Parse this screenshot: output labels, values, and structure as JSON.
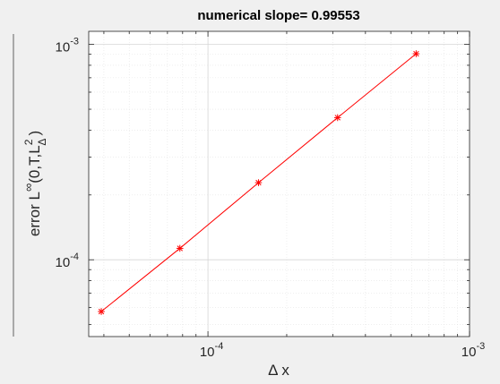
{
  "chart_data": {
    "type": "line",
    "title": "numerical slope= 0.99553",
    "xlabel": "Δ x",
    "ylabel": {
      "prefix": "error L",
      "sup": "∞",
      "mid": "(0,T,L",
      "sup2": "2",
      "sub2": "Δ",
      "suffix": ")"
    },
    "xscale": "log",
    "yscale": "log",
    "xlim": [
      3.5e-05,
      0.001
    ],
    "ylim": [
      4.4e-05,
      0.00115
    ],
    "grid": true,
    "x_ticks": [
      {
        "value": 0.0001,
        "base": "10",
        "exp": "-4"
      },
      {
        "value": 0.001,
        "base": "10",
        "exp": "-3"
      }
    ],
    "y_ticks": [
      {
        "value": 0.0001,
        "base": "10",
        "exp": "-4"
      },
      {
        "value": 0.001,
        "base": "10",
        "exp": "-3"
      }
    ],
    "series": [
      {
        "color": "#ff0000",
        "marker": "asterisk",
        "x": [
          3.91e-05,
          7.81e-05,
          0.000156,
          0.000313,
          0.000625
        ],
        "y": [
          5.75e-05,
          0.000113,
          0.000228,
          0.000457,
          0.000905
        ]
      }
    ]
  }
}
